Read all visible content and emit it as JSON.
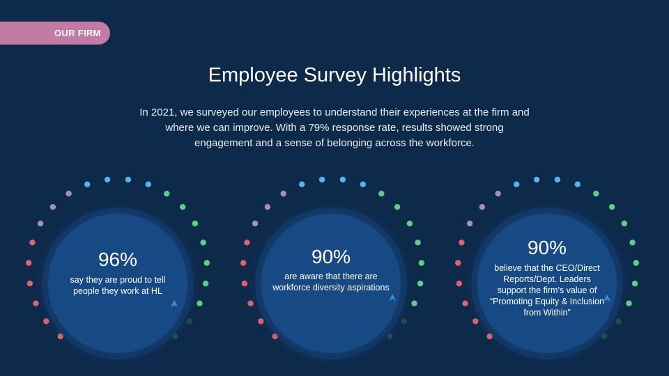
{
  "tag": {
    "label": "OUR FIRM"
  },
  "title": "Employee Survey Highlights",
  "intro": "In 2021, we surveyed our employees to understand their experiences at the firm and where we can improve. With a 79% response rate, results showed strong engagement and a sense of belonging across the workforce.",
  "stats": [
    {
      "percent": "96%",
      "description": "say they are proud to tell people they work at HL"
    },
    {
      "percent": "90%",
      "description": "are aware that there are workforce diversity aspirations"
    },
    {
      "percent": "90%",
      "description": "believe that the CEO/Direct Reports/Dept. Leaders support the firm's value of “Promoting Equity & Inclusion from Within”"
    }
  ],
  "colors": {
    "background": "#0e2a4b",
    "tag": "#c27ba5",
    "circle": "#174a85",
    "dot_red": "#e2636e",
    "dot_purple": "#a78bd2",
    "dot_blue": "#58b4e6",
    "dot_green": "#5fcf86",
    "dot_dark_green": "#2f6b55"
  },
  "icons": [
    "logo-mark-icon"
  ]
}
